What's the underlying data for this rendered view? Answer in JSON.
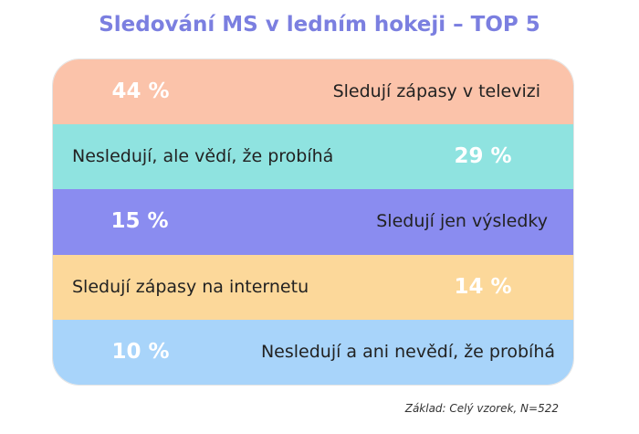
{
  "title": "Sledování MS v ledním hokeji – TOP 5",
  "rows": [
    {
      "value": "44 %",
      "label": "Sledují zápasy v televizi"
    },
    {
      "value": "29 %",
      "label": "Nesledují, ale vědí, že probíhá"
    },
    {
      "value": "15 %",
      "label": "Sledují jen výsledky"
    },
    {
      "value": "14 %",
      "label": "Sledují zápasy na internetu"
    },
    {
      "value": "10 %",
      "label": "Nesledují a ani nevědí, že probíhá"
    }
  ],
  "footnote": "Základ: Celý vzorek, N=522"
}
